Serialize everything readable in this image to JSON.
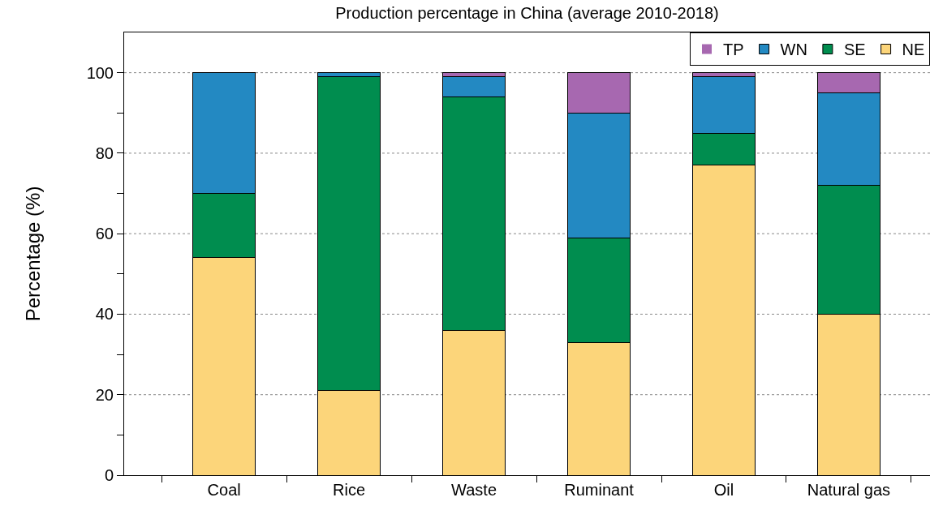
{
  "chart_data": {
    "type": "bar",
    "stacked": true,
    "title": "Production percentage in China (average 2010-2018)",
    "ylabel": "Percentage (%)",
    "categories": [
      "Coal",
      "Rice",
      "Waste",
      "Ruminant",
      "Oil",
      "Natural gas"
    ],
    "series": [
      {
        "name": "NE",
        "color": "#fcd57a",
        "values": [
          54,
          21,
          36,
          33,
          77,
          40
        ]
      },
      {
        "name": "SE",
        "color": "#008d4f",
        "values": [
          16,
          78,
          58,
          26,
          8,
          32
        ]
      },
      {
        "name": "WN",
        "color": "#2389c2",
        "values": [
          30,
          1,
          5,
          31,
          14,
          23
        ]
      },
      {
        "name": "TP",
        "color": "#a768b0",
        "values": [
          0,
          0,
          1,
          10,
          1,
          5
        ]
      }
    ],
    "ylim": [
      0,
      110
    ],
    "yticks": [
      0,
      {
        "value": 10,
        "label": null
      },
      20,
      {
        "value": 30,
        "label": null
      },
      40,
      {
        "value": 50,
        "label": null
      },
      60,
      {
        "value": 70,
        "label": null
      },
      80,
      {
        "value": 90,
        "label": null
      },
      100
    ],
    "grid": "y",
    "legend": "top right"
  }
}
